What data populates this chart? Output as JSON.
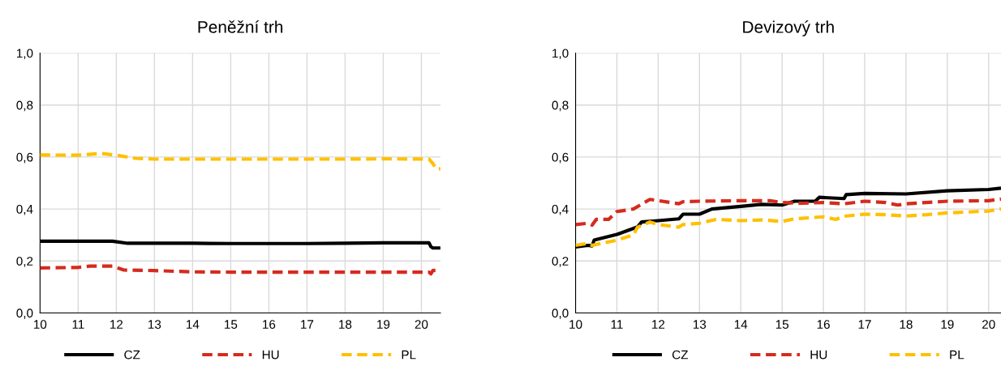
{
  "chart_data": [
    {
      "type": "line",
      "title": "Peněžní trh",
      "xlim": [
        10,
        20.5
      ],
      "ylim": [
        0,
        1
      ],
      "xticks": [
        10,
        11,
        12,
        13,
        14,
        15,
        16,
        17,
        18,
        19,
        20
      ],
      "yticks": [
        {
          "value": 0,
          "label": "0,0"
        },
        {
          "value": 0.2,
          "label": "0,2"
        },
        {
          "value": 0.4,
          "label": "0,4"
        },
        {
          "value": 0.6,
          "label": "0,6"
        },
        {
          "value": 0.8,
          "label": "0,8"
        },
        {
          "value": 1,
          "label": "1,0"
        }
      ],
      "grid": true,
      "legend": "bottom",
      "series": [
        {
          "name": "CZ",
          "color": "#000000",
          "line_style": "solid",
          "x": [
            10,
            11,
            11.9,
            12.3,
            13,
            14,
            15,
            16,
            17,
            18,
            19,
            20.2,
            20.25,
            20.3,
            20.5
          ],
          "values": [
            0.276,
            0.276,
            0.276,
            0.268,
            0.268,
            0.268,
            0.267,
            0.267,
            0.267,
            0.268,
            0.27,
            0.27,
            0.255,
            0.25,
            0.25
          ]
        },
        {
          "name": "HU",
          "color": "#d52b1e",
          "line_style": "dashed",
          "x": [
            10,
            11,
            11.3,
            11.9,
            12.2,
            13,
            14,
            15,
            16,
            17,
            18,
            19,
            20.2,
            20.25,
            20.3,
            20.5
          ],
          "values": [
            0.173,
            0.175,
            0.18,
            0.18,
            0.165,
            0.163,
            0.158,
            0.157,
            0.157,
            0.157,
            0.157,
            0.157,
            0.157,
            0.15,
            0.163,
            0.165
          ]
        },
        {
          "name": "PL",
          "color": "#ffc000",
          "line_style": "dashed",
          "x": [
            10,
            11,
            11.6,
            12,
            12.5,
            13,
            14,
            15,
            16,
            17,
            18,
            19,
            20.2,
            20.3,
            20.4,
            20.5
          ],
          "values": [
            0.608,
            0.607,
            0.614,
            0.607,
            0.595,
            0.592,
            0.592,
            0.592,
            0.592,
            0.592,
            0.592,
            0.593,
            0.592,
            0.575,
            0.553,
            0.555
          ]
        }
      ]
    },
    {
      "type": "line",
      "title": "Devizový trh",
      "xlim": [
        10,
        20.3
      ],
      "ylim": [
        0,
        1
      ],
      "xticks": [
        10,
        11,
        12,
        13,
        14,
        15,
        16,
        17,
        18,
        19,
        20
      ],
      "yticks": [
        {
          "value": 0,
          "label": "0,0"
        },
        {
          "value": 0.2,
          "label": "0,2"
        },
        {
          "value": 0.4,
          "label": "0,4"
        },
        {
          "value": 0.6,
          "label": "0,6"
        },
        {
          "value": 0.8,
          "label": "0,8"
        },
        {
          "value": 1,
          "label": "1,0"
        }
      ],
      "grid": true,
      "legend": "bottom",
      "series": [
        {
          "name": "CZ",
          "color": "#000000",
          "line_style": "solid",
          "x": [
            10,
            10.3,
            10.4,
            10.45,
            11,
            11.5,
            11.6,
            12,
            12.5,
            12.6,
            13,
            13.3,
            14,
            14.5,
            15,
            15.3,
            15.8,
            15.9,
            16.5,
            16.55,
            17,
            18,
            19,
            20,
            20.3
          ],
          "values": [
            0.254,
            0.26,
            0.258,
            0.28,
            0.302,
            0.331,
            0.35,
            0.355,
            0.362,
            0.38,
            0.38,
            0.4,
            0.41,
            0.418,
            0.415,
            0.43,
            0.43,
            0.445,
            0.44,
            0.455,
            0.46,
            0.458,
            0.47,
            0.475,
            0.48
          ]
        },
        {
          "name": "HU",
          "color": "#d52b1e",
          "line_style": "dashed",
          "x": [
            10,
            10.3,
            10.4,
            10.5,
            10.8,
            11,
            11.4,
            11.8,
            12,
            12.5,
            12.6,
            13,
            14,
            14.7,
            15,
            15.5,
            16,
            16.5,
            17,
            17.5,
            17.8,
            18,
            19,
            20,
            20.3
          ],
          "values": [
            0.34,
            0.345,
            0.338,
            0.36,
            0.36,
            0.39,
            0.4,
            0.437,
            0.432,
            0.42,
            0.428,
            0.43,
            0.432,
            0.432,
            0.425,
            0.422,
            0.425,
            0.42,
            0.43,
            0.425,
            0.415,
            0.42,
            0.43,
            0.432,
            0.438
          ]
        },
        {
          "name": "PL",
          "color": "#ffc000",
          "line_style": "dashed",
          "x": [
            10,
            10.3,
            10.4,
            11,
            11.4,
            11.5,
            11.8,
            12,
            12.5,
            12.6,
            13,
            13.4,
            14,
            14.5,
            15,
            15.3,
            16,
            16.3,
            16.5,
            17,
            17.5,
            18,
            18.5,
            19,
            20,
            20.3
          ],
          "values": [
            0.26,
            0.268,
            0.26,
            0.28,
            0.3,
            0.33,
            0.35,
            0.34,
            0.33,
            0.34,
            0.345,
            0.36,
            0.355,
            0.358,
            0.352,
            0.362,
            0.37,
            0.36,
            0.372,
            0.38,
            0.378,
            0.373,
            0.378,
            0.385,
            0.392,
            0.4
          ]
        }
      ]
    }
  ]
}
